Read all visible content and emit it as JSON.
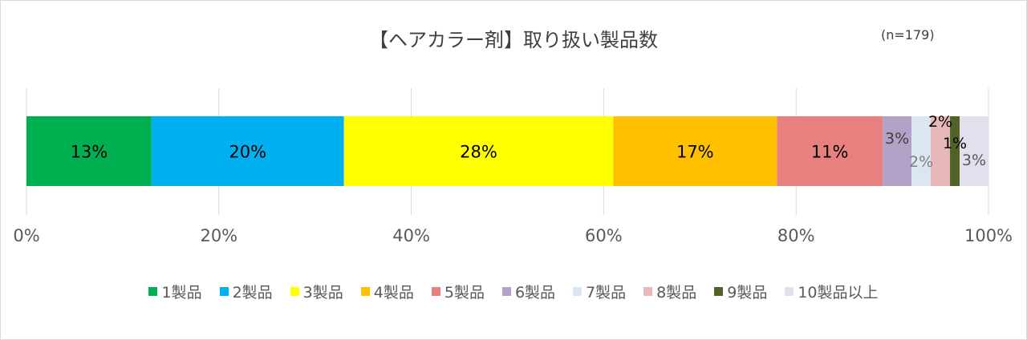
{
  "chart_data": {
    "type": "bar",
    "orientation": "horizontal-stacked-100",
    "title": "【ヘアカラー剤】取り扱い製品数",
    "note": "(n=179)",
    "xlim": [
      0,
      100
    ],
    "x_ticks": [
      "0%",
      "20%",
      "40%",
      "60%",
      "80%",
      "100%"
    ],
    "grid": true,
    "legend_position": "bottom",
    "series": [
      {
        "name": "1製品",
        "value": 13,
        "label": "13%",
        "color": "#00b050"
      },
      {
        "name": "2製品",
        "value": 20,
        "label": "20%",
        "color": "#00b0f0"
      },
      {
        "name": "3製品",
        "value": 28,
        "label": "28%",
        "color": "#ffff00"
      },
      {
        "name": "4製品",
        "value": 17,
        "label": "17%",
        "color": "#ffc000"
      },
      {
        "name": "5製品",
        "value": 11,
        "label": "11%",
        "color": "#e88080"
      },
      {
        "name": "6製品",
        "value": 3,
        "label": "3%",
        "color": "#b2a2c7"
      },
      {
        "name": "7製品",
        "value": 2,
        "label": "2%",
        "color": "#dce6f2"
      },
      {
        "name": "8製品",
        "value": 2,
        "label": "2%",
        "color": "#e6b9b8"
      },
      {
        "name": "9製品",
        "value": 1,
        "label": "1%",
        "color": "#4f6228"
      },
      {
        "name": "10製品以上",
        "value": 3,
        "label": "3%",
        "color": "#e4dfec"
      }
    ]
  }
}
